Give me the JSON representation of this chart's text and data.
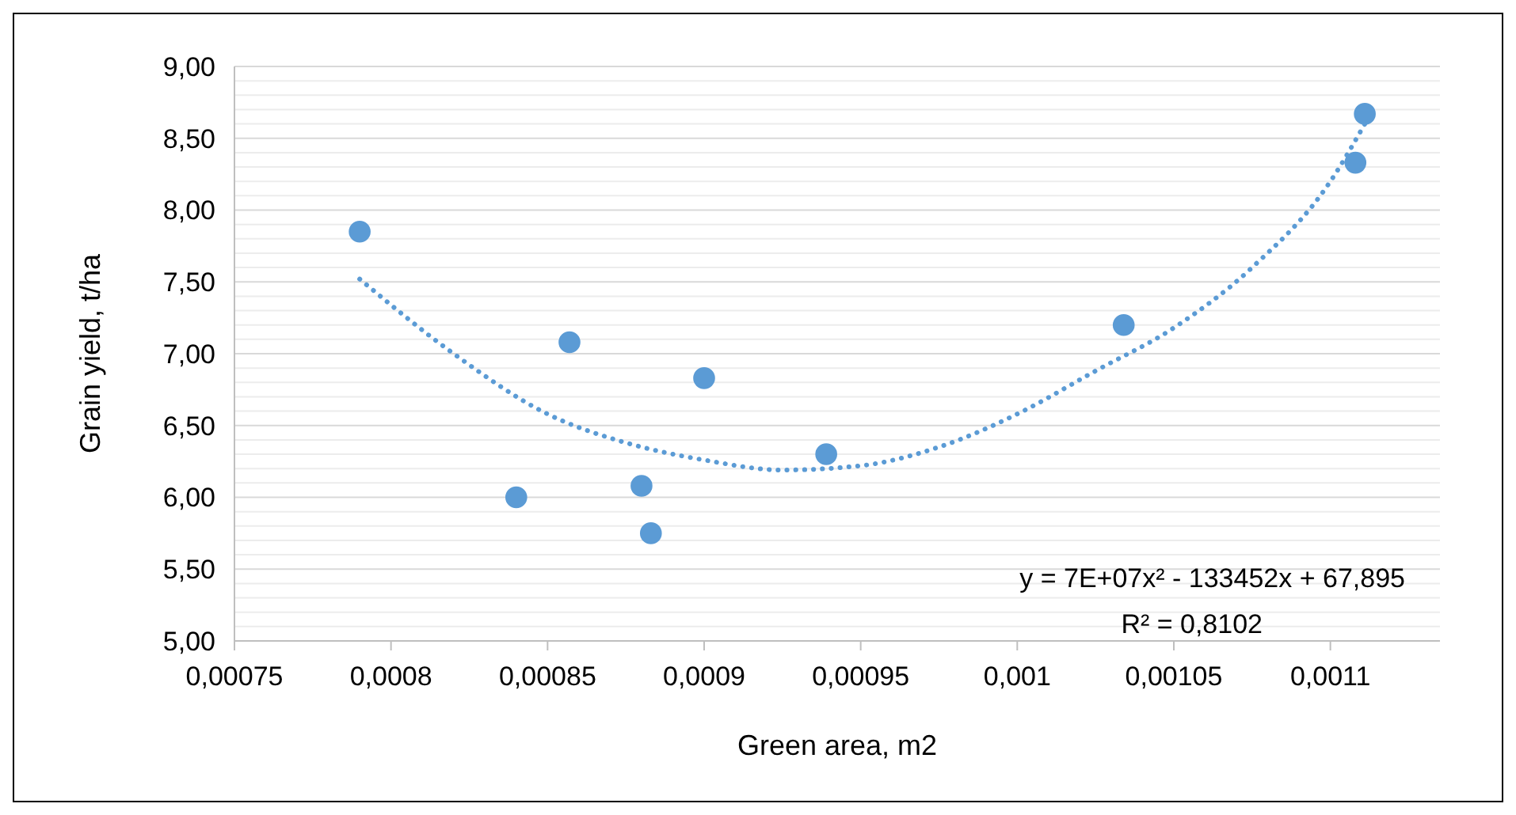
{
  "chart_data": {
    "type": "scatter",
    "xlabel": "Green area, m2",
    "ylabel": "Grain yield, t/ha",
    "xlim": [
      0.00075,
      0.001135
    ],
    "xticks": [
      {
        "value": 0.00075,
        "label": "0,00075"
      },
      {
        "value": 0.0008,
        "label": "0,0008"
      },
      {
        "value": 0.00085,
        "label": "0,00085"
      },
      {
        "value": 0.0009,
        "label": "0,0009"
      },
      {
        "value": 0.00095,
        "label": "0,00095"
      },
      {
        "value": 0.001,
        "label": "0,001"
      },
      {
        "value": 0.00105,
        "label": "0,00105"
      },
      {
        "value": 0.0011,
        "label": "0,0011"
      }
    ],
    "ylim": [
      5,
      9
    ],
    "yticks": [
      {
        "value": 5,
        "label": "5,00"
      },
      {
        "value": 5.1,
        "label": null
      },
      {
        "value": 5.2,
        "label": null
      },
      {
        "value": 5.3,
        "label": null
      },
      {
        "value": 5.4,
        "label": null
      },
      {
        "value": 5.5,
        "label": "5,50"
      },
      {
        "value": 5.6,
        "label": null
      },
      {
        "value": 5.7,
        "label": null
      },
      {
        "value": 5.8,
        "label": null
      },
      {
        "value": 5.9,
        "label": null
      },
      {
        "value": 6,
        "label": "6,00"
      },
      {
        "value": 6.1,
        "label": null
      },
      {
        "value": 6.2,
        "label": null
      },
      {
        "value": 6.3,
        "label": null
      },
      {
        "value": 6.4,
        "label": null
      },
      {
        "value": 6.5,
        "label": "6,50"
      },
      {
        "value": 6.6,
        "label": null
      },
      {
        "value": 6.7,
        "label": null
      },
      {
        "value": 6.8,
        "label": null
      },
      {
        "value": 6.9,
        "label": null
      },
      {
        "value": 7,
        "label": "7,00"
      },
      {
        "value": 7.1,
        "label": null
      },
      {
        "value": 7.2,
        "label": null
      },
      {
        "value": 7.3,
        "label": null
      },
      {
        "value": 7.4,
        "label": null
      },
      {
        "value": 7.5,
        "label": "7,50"
      },
      {
        "value": 7.6,
        "label": null
      },
      {
        "value": 7.7,
        "label": null
      },
      {
        "value": 7.8,
        "label": null
      },
      {
        "value": 7.9,
        "label": null
      },
      {
        "value": 8,
        "label": "8,00"
      },
      {
        "value": 8.1,
        "label": null
      },
      {
        "value": 8.2,
        "label": null
      },
      {
        "value": 8.3,
        "label": null
      },
      {
        "value": 8.4,
        "label": null
      },
      {
        "value": 8.5,
        "label": "8,50"
      },
      {
        "value": 8.6,
        "label": null
      },
      {
        "value": 8.7,
        "label": null
      },
      {
        "value": 8.8,
        "label": null
      },
      {
        "value": 8.9,
        "label": null
      },
      {
        "value": 9,
        "label": "9,00"
      }
    ],
    "grid": "y",
    "marker": "circle",
    "series": [
      {
        "color": "#5b9bd5",
        "x": [
          0.00079,
          0.00084,
          0.000857,
          0.00088,
          0.000883,
          0.0009,
          0.000939,
          0.001034,
          0.001108,
          0.001111
        ],
        "values": [
          7.85,
          6.0,
          7.08,
          6.08,
          5.75,
          6.83,
          6.3,
          7.2,
          8.33,
          8.67
        ]
      },
      {
        "type": "line",
        "color": "#5b9bd5",
        "line_style": "dotted",
        "marker": "none",
        "x": [
          0.00079,
          0.00082,
          0.00085,
          0.000875,
          0.0009,
          0.000925,
          0.00095,
          0.000975,
          0.001,
          0.001025,
          0.00105,
          0.001075,
          0.0011,
          0.001111
        ],
        "values": [
          7.52,
          7.0,
          6.58,
          6.38,
          6.26,
          6.19,
          6.22,
          6.35,
          6.58,
          6.88,
          7.18,
          7.6,
          8.2,
          8.6
        ]
      }
    ],
    "annotations": [
      "y = 7E+07x² - 133452x + 67,895",
      "R² = 0,8102"
    ]
  }
}
